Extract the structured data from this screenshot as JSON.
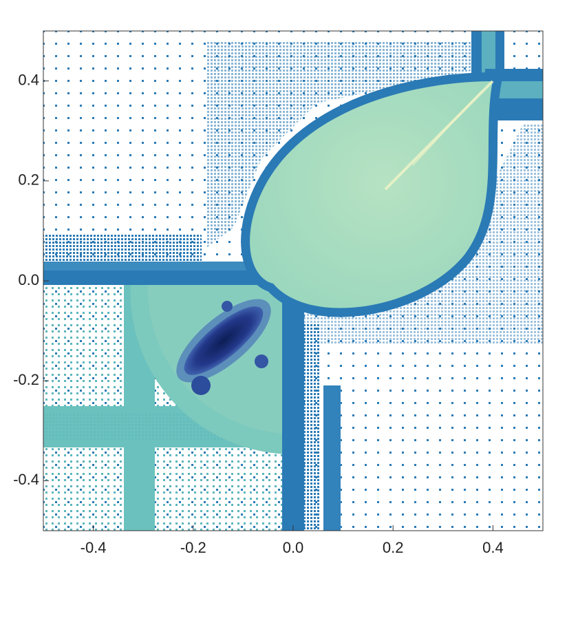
{
  "chart_data": {
    "type": "image",
    "xlim": [
      -0.5,
      0.5
    ],
    "ylim": [
      -0.5,
      0.5
    ],
    "xticks": [
      -0.4,
      -0.2,
      {
        "value": 0,
        "label": "0.0"
      },
      0.2,
      0.4
    ],
    "yticks": [
      -0.4,
      -0.2,
      {
        "value": 0,
        "label": "0.0"
      },
      0.2,
      0.4
    ]
  }
}
